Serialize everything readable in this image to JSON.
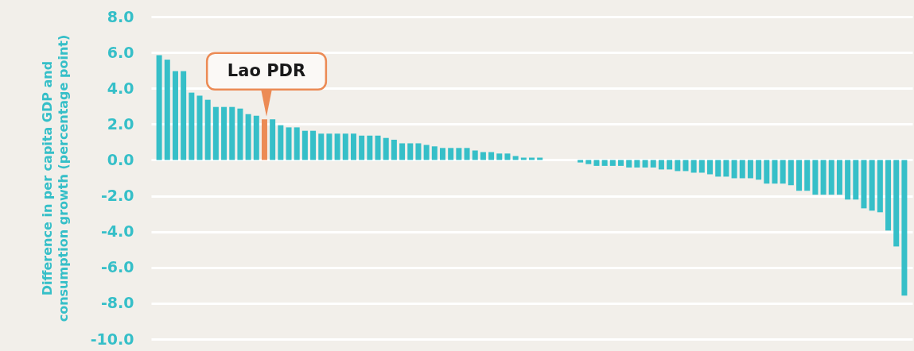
{
  "chart_data": {
    "type": "bar",
    "ylabel": "Difference in per capita GDP and consumption growth (percentage point)",
    "categories": [
      null,
      null,
      null,
      null,
      null,
      null,
      null,
      null,
      null,
      null,
      null,
      null,
      null,
      null,
      null,
      null,
      null,
      null,
      null,
      null,
      null,
      null,
      null,
      null,
      null,
      null,
      null,
      null,
      null,
      null,
      null,
      null,
      null,
      null,
      null,
      null,
      null,
      null,
      null,
      null,
      null,
      null,
      null,
      null,
      null,
      null,
      null,
      null,
      null,
      null,
      null,
      null,
      null,
      null,
      null,
      null,
      null,
      null,
      null,
      null,
      null,
      null,
      null,
      null,
      null,
      null,
      null,
      null,
      null,
      null,
      null,
      null,
      null,
      null,
      null,
      null,
      null,
      null,
      null,
      null,
      null,
      null,
      null,
      null,
      null,
      null,
      null,
      null,
      null,
      null,
      null,
      null,
      null
    ],
    "values": [
      5.85,
      5.6,
      4.96,
      4.96,
      3.76,
      3.59,
      3.36,
      2.96,
      2.96,
      2.96,
      2.87,
      2.56,
      2.47,
      2.27,
      2.27,
      1.94,
      1.82,
      1.82,
      1.63,
      1.63,
      1.47,
      1.47,
      1.47,
      1.47,
      1.47,
      1.36,
      1.36,
      1.36,
      1.23,
      1.13,
      0.93,
      0.93,
      0.93,
      0.84,
      0.76,
      0.67,
      0.67,
      0.67,
      0.67,
      0.53,
      0.44,
      0.44,
      0.36,
      0.36,
      0.22,
      0.13,
      0.13,
      0.13,
      0,
      0,
      0,
      0,
      -0.14,
      -0.23,
      -0.33,
      -0.33,
      -0.33,
      -0.33,
      -0.42,
      -0.42,
      -0.42,
      -0.42,
      -0.53,
      -0.53,
      -0.62,
      -0.62,
      -0.71,
      -0.71,
      -0.8,
      -0.93,
      -0.93,
      -1.02,
      -1.02,
      -1.02,
      -1.1,
      -1.32,
      -1.32,
      -1.32,
      -1.41,
      -1.72,
      -1.72,
      -1.94,
      -1.94,
      -1.94,
      -1.94,
      -2.21,
      -2.21,
      -2.7,
      -2.83,
      -2.92,
      -3.94,
      -4.83,
      -7.57
    ],
    "colors": [
      "#36bfc8",
      "#36bfc8",
      "#36bfc8",
      "#36bfc8",
      "#36bfc8",
      "#36bfc8",
      "#36bfc8",
      "#36bfc8",
      "#36bfc8",
      "#36bfc8",
      "#36bfc8",
      "#36bfc8",
      "#36bfc8",
      "#ec8b55",
      "#36bfc8",
      "#36bfc8",
      "#36bfc8",
      "#36bfc8",
      "#36bfc8",
      "#36bfc8",
      "#36bfc8",
      "#36bfc8",
      "#36bfc8",
      "#36bfc8",
      "#36bfc8",
      "#36bfc8",
      "#36bfc8",
      "#36bfc8",
      "#36bfc8",
      "#36bfc8",
      "#36bfc8",
      "#36bfc8",
      "#36bfc8",
      "#36bfc8",
      "#36bfc8",
      "#36bfc8",
      "#36bfc8",
      "#36bfc8",
      "#36bfc8",
      "#36bfc8",
      "#36bfc8",
      "#36bfc8",
      "#36bfc8",
      "#36bfc8",
      "#36bfc8",
      "#36bfc8",
      "#36bfc8",
      "#36bfc8",
      "#36bfc8",
      "#36bfc8",
      "#36bfc8",
      "#36bfc8",
      "#36bfc8",
      "#36bfc8",
      "#36bfc8",
      "#36bfc8",
      "#36bfc8",
      "#36bfc8",
      "#36bfc8",
      "#36bfc8",
      "#36bfc8",
      "#36bfc8",
      "#36bfc8",
      "#36bfc8",
      "#36bfc8",
      "#36bfc8",
      "#36bfc8",
      "#36bfc8",
      "#36bfc8",
      "#36bfc8",
      "#36bfc8",
      "#36bfc8",
      "#36bfc8",
      "#36bfc8",
      "#36bfc8",
      "#36bfc8",
      "#36bfc8",
      "#36bfc8",
      "#36bfc8",
      "#36bfc8",
      "#36bfc8",
      "#36bfc8",
      "#36bfc8",
      "#36bfc8",
      "#36bfc8",
      "#36bfc8",
      "#36bfc8",
      "#36bfc8",
      "#36bfc8",
      "#36bfc8",
      "#36bfc8",
      "#36bfc8",
      "#36bfc8"
    ],
    "ylim": [
      -10,
      8
    ],
    "yticks": [
      {
        "value": -10,
        "label": "-10.0"
      },
      {
        "value": -8,
        "label": "-8.0"
      },
      {
        "value": -6,
        "label": "-6.0"
      },
      {
        "value": -4,
        "label": "-4.0"
      },
      {
        "value": -2,
        "label": "-2.0"
      },
      {
        "value": 0,
        "label": "0.0"
      },
      {
        "value": 2,
        "label": "2.0"
      },
      {
        "value": 4,
        "label": "4.0"
      },
      {
        "value": 6,
        "label": "6.0"
      },
      {
        "value": 8,
        "label": "8.0"
      }
    ],
    "grid": "y",
    "annotations": [
      {
        "text": "Lao PDR",
        "y": 2.27
      }
    ]
  }
}
